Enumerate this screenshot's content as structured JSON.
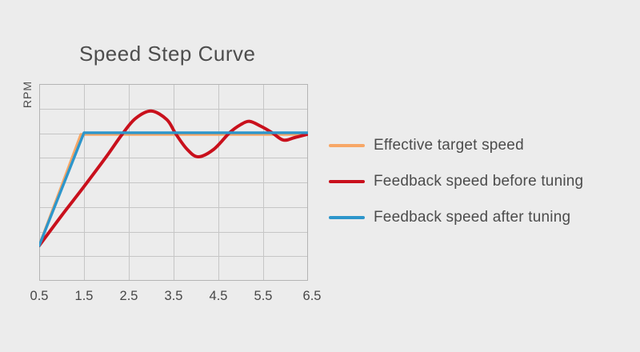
{
  "page": {
    "background": "#ececec"
  },
  "chart": {
    "title": "Speed Step Curve",
    "ylabel": "RPM"
  },
  "chart_data": {
    "type": "line",
    "title": "Speed Step Curve",
    "xlabel": "",
    "ylabel": "RPM",
    "xticks": [
      "0.5",
      "1.5",
      "2.5",
      "3.5",
      "4.5",
      "5.5",
      "6.5"
    ],
    "xlim": [
      0.5,
      6.5
    ],
    "ylim": [
      0,
      8
    ],
    "y_units": "relative grid units (no numeric y-axis tick labels shown)",
    "grid": true,
    "grid_columns": 6,
    "grid_rows": 8,
    "legend_position": "right",
    "settle_level": 6.0,
    "series": [
      {
        "name": "Effective target speed",
        "color": "#f7a766",
        "smooth": false,
        "points": [
          [
            0.5,
            1.43
          ],
          [
            1.43,
            5.95
          ],
          [
            6.5,
            5.95
          ]
        ]
      },
      {
        "name": "Feedback speed before tuning",
        "color": "#c9101c",
        "smooth": true,
        "points": [
          [
            0.5,
            1.43
          ],
          [
            1.0,
            2.65
          ],
          [
            1.5,
            3.83
          ],
          [
            2.0,
            5.05
          ],
          [
            2.35,
            5.95
          ],
          [
            2.65,
            6.6
          ],
          [
            3.0,
            6.9
          ],
          [
            3.35,
            6.55
          ],
          [
            3.55,
            5.97
          ],
          [
            3.8,
            5.35
          ],
          [
            4.05,
            5.04
          ],
          [
            4.4,
            5.35
          ],
          [
            4.75,
            6.02
          ],
          [
            5.0,
            6.35
          ],
          [
            5.2,
            6.48
          ],
          [
            5.45,
            6.28
          ],
          [
            5.7,
            6.02
          ],
          [
            5.95,
            5.72
          ],
          [
            6.2,
            5.82
          ],
          [
            6.5,
            5.96
          ]
        ]
      },
      {
        "name": "Feedback speed after tuning",
        "color": "#2d96cb",
        "smooth": false,
        "points": [
          [
            0.5,
            1.43
          ],
          [
            1.5,
            6.02
          ],
          [
            6.5,
            6.02
          ]
        ]
      }
    ]
  },
  "legend": {
    "items": [
      {
        "label": "Effective target speed",
        "color": "#f7a766"
      },
      {
        "label": "Feedback speed before tuning",
        "color": "#c9101c"
      },
      {
        "label": "Feedback speed after tuning",
        "color": "#2d96cb"
      }
    ]
  },
  "colors": {
    "background": "#ececec",
    "grid_line": "#c6c6c6",
    "grid_border": "#b4b4b4",
    "text": "#4d4d4d"
  }
}
